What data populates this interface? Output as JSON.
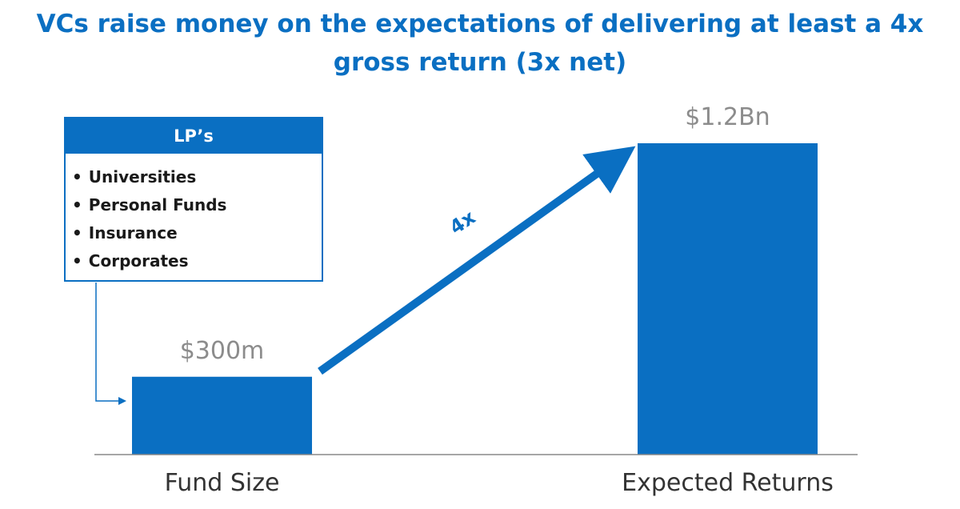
{
  "title_line1": "VCs raise money on the expectations of delivering at least a 4x",
  "title_line2": "gross return (3x net)",
  "lp_box": {
    "header": "LP’s",
    "items": [
      "Universities",
      "Personal Funds",
      "Insurance",
      "Corporates"
    ]
  },
  "colors": {
    "accent": "#0a6fc2",
    "value_label": "#8c8c8c",
    "axis": "#888888"
  },
  "chart_data": {
    "type": "bar",
    "categories": [
      "Fund Size",
      "Expected Returns"
    ],
    "values": [
      300,
      1200
    ],
    "unit": "$ millions",
    "value_labels": [
      "$300m",
      "$1.2Bn"
    ],
    "multiple_label": "4x",
    "ylim": [
      0,
      1200
    ],
    "grid": false
  }
}
